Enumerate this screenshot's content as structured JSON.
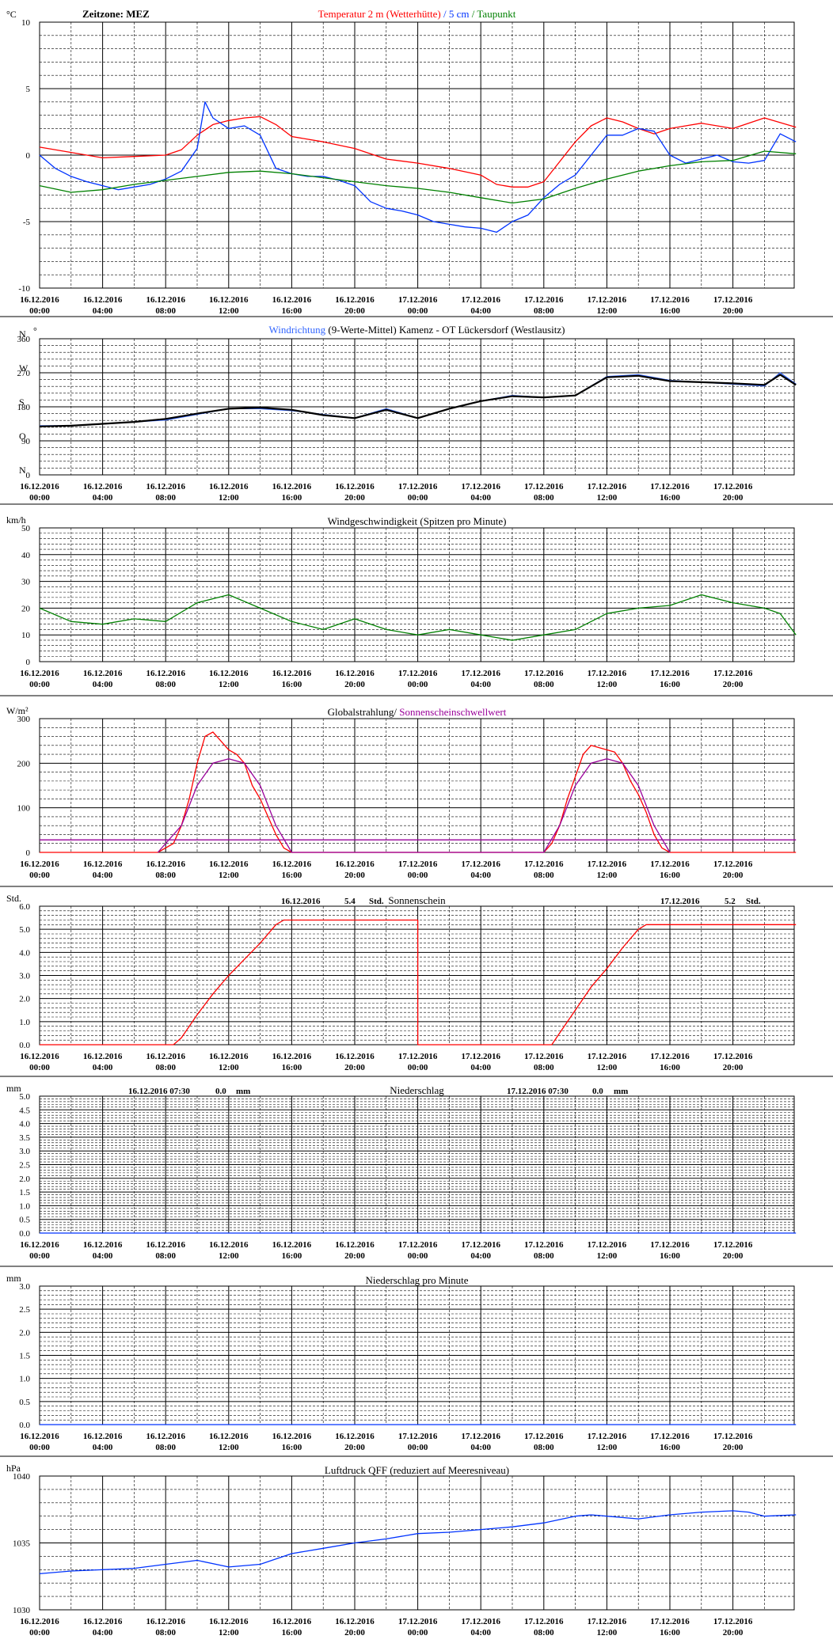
{
  "time_ticks": [
    [
      "16.12.2016",
      "00:00"
    ],
    [
      "16.12.2016",
      "04:00"
    ],
    [
      "16.12.2016",
      "08:00"
    ],
    [
      "16.12.2016",
      "12:00"
    ],
    [
      "16.12.2016",
      "16:00"
    ],
    [
      "16.12.2016",
      "20:00"
    ],
    [
      "17.12.2016",
      "00:00"
    ],
    [
      "17.12.2016",
      "04:00"
    ],
    [
      "17.12.2016",
      "08:00"
    ],
    [
      "17.12.2016",
      "12:00"
    ],
    [
      "17.12.2016",
      "16:00"
    ],
    [
      "17.12.2016",
      "20:00"
    ]
  ],
  "colors": {
    "red": "#ff0000",
    "blue": "#0033ff",
    "green": "#008000",
    "black": "#000000",
    "purple": "#990099",
    "brightblue": "#3366ff"
  },
  "chart_data": [
    {
      "id": "temperature",
      "type": "line",
      "unit": "°C",
      "timezone_label": "Zeitzone: MEZ",
      "title_parts": [
        {
          "text": "Temperatur 2 m (Wetterhütte)",
          "color": "#ff0000"
        },
        {
          "text": "  /  ",
          "color": "#0033ff"
        },
        {
          "text": "5 cm",
          "color": "#0033ff"
        },
        {
          "text": " / ",
          "color": "#008000"
        },
        {
          "text": "Taupunkt",
          "color": "#008000"
        }
      ],
      "ylim": [
        -10,
        10
      ],
      "yticks": [
        10,
        5,
        0,
        -5,
        -10
      ],
      "grid": true,
      "series": [
        {
          "name": "Temperatur 2 m (Wetterhütte)",
          "color": "#ff0000",
          "x": [
            0,
            2,
            4,
            6,
            8,
            9,
            10,
            11,
            12,
            13,
            14,
            15,
            16,
            18,
            20,
            22,
            24,
            26,
            28,
            29,
            30,
            31,
            32,
            33,
            34,
            35,
            36,
            37,
            38,
            39,
            40,
            41,
            42,
            43,
            44,
            46,
            48
          ],
          "y": [
            0.6,
            0.2,
            -0.2,
            -0.1,
            0,
            0.4,
            1.5,
            2.3,
            2.6,
            2.8,
            2.9,
            2.3,
            1.4,
            1,
            0.5,
            -0.3,
            -0.6,
            -1,
            -1.5,
            -2.2,
            -2.4,
            -2.4,
            -2,
            -0.5,
            1,
            2.2,
            2.8,
            2.5,
            2,
            1.6,
            2,
            2.2,
            2.4,
            2.2,
            2,
            2.8,
            2.1
          ]
        },
        {
          "name": "5 cm",
          "color": "#0033ff",
          "x": [
            0,
            1,
            2,
            3,
            4,
            5,
            6,
            7,
            8,
            9,
            10,
            10.5,
            11,
            12,
            13,
            14,
            15,
            16,
            17,
            18,
            19,
            20,
            21,
            22,
            23,
            24,
            25,
            26,
            27,
            28,
            29,
            30,
            31,
            32,
            33,
            34,
            35,
            36,
            37,
            38,
            39,
            40,
            41,
            42,
            43,
            44,
            45,
            46,
            47,
            48
          ],
          "y": [
            0,
            -1,
            -1.6,
            -2,
            -2.3,
            -2.6,
            -2.4,
            -2.2,
            -1.8,
            -1.2,
            0.5,
            4,
            2.8,
            2,
            2.2,
            1.5,
            -1,
            -1.4,
            -1.6,
            -1.6,
            -1.9,
            -2.3,
            -3.5,
            -4,
            -4.2,
            -4.5,
            -5,
            -5.2,
            -5.4,
            -5.5,
            -5.8,
            -5,
            -4.5,
            -3.2,
            -2.2,
            -1.5,
            0,
            1.5,
            1.5,
            2,
            1.8,
            0,
            -0.6,
            -0.3,
            0,
            -0.5,
            -0.6,
            -0.4,
            1.6,
            1
          ]
        },
        {
          "name": "Taupunkt",
          "color": "#008000",
          "x": [
            0,
            2,
            4,
            6,
            8,
            10,
            12,
            14,
            16,
            18,
            20,
            22,
            24,
            26,
            28,
            30,
            32,
            34,
            36,
            38,
            40,
            42,
            44,
            46,
            48
          ],
          "y": [
            -2.3,
            -2.8,
            -2.6,
            -2.2,
            -1.9,
            -1.6,
            -1.3,
            -1.2,
            -1.4,
            -1.7,
            -2,
            -2.3,
            -2.5,
            -2.8,
            -3.2,
            -3.6,
            -3.3,
            -2.5,
            -1.8,
            -1.2,
            -0.8,
            -0.5,
            -0.4,
            0.3,
            0.1
          ]
        }
      ]
    },
    {
      "id": "wind_direction",
      "type": "line",
      "title_parts": [
        {
          "text": "Windrichtung",
          "color": "#3366ff"
        },
        {
          "text": " (9-Werte-Mittel)",
          "color": "#000000"
        },
        {
          "text": "          Kamenz - OT Lückersdorf (Westlausitz)",
          "color": "#000000"
        }
      ],
      "ylim": [
        0,
        360
      ],
      "yticks": [
        360,
        270,
        180,
        90,
        0
      ],
      "compass": [
        {
          "label": "N",
          "value": 360
        },
        {
          "label": "W",
          "value": 270
        },
        {
          "label": "S",
          "value": 180
        },
        {
          "label": "O",
          "value": 90
        },
        {
          "label": "N",
          "value": 0
        }
      ],
      "degree_mark": "°",
      "grid": true,
      "series": [
        {
          "name": "Windrichtung",
          "color": "#3366ff",
          "x": [
            0,
            2,
            4,
            6,
            8,
            10,
            12,
            14,
            16,
            18,
            20,
            22,
            24,
            26,
            28,
            30,
            32,
            34,
            36,
            38,
            40,
            42,
            44,
            46,
            47,
            48
          ],
          "y": [
            130,
            130,
            135,
            140,
            145,
            160,
            175,
            175,
            170,
            160,
            150,
            175,
            150,
            175,
            195,
            210,
            205,
            210,
            260,
            265,
            250,
            245,
            240,
            235,
            270,
            240
          ]
        },
        {
          "name": "9-Werte-Mittel",
          "color": "#000000",
          "x": [
            0,
            2,
            4,
            6,
            8,
            10,
            12,
            14,
            16,
            18,
            20,
            22,
            24,
            26,
            28,
            30,
            32,
            34,
            36,
            38,
            40,
            42,
            44,
            46,
            47,
            48
          ],
          "y": [
            128,
            130,
            135,
            140,
            148,
            162,
            175,
            178,
            172,
            158,
            150,
            172,
            150,
            175,
            195,
            208,
            205,
            210,
            258,
            262,
            248,
            245,
            242,
            238,
            265,
            238
          ]
        }
      ]
    },
    {
      "id": "wind_speed",
      "type": "line",
      "unit": "km/h",
      "title": "Windgeschwindigkeit (Spitzen pro Minute)",
      "ylim": [
        0,
        50
      ],
      "yticks": [
        50,
        40,
        30,
        20,
        10,
        0
      ],
      "grid": true,
      "series": [
        {
          "name": "Windgeschwindigkeit",
          "color": "#008000",
          "x": [
            0,
            2,
            4,
            6,
            8,
            10,
            12,
            14,
            16,
            18,
            20,
            22,
            24,
            26,
            28,
            30,
            32,
            34,
            36,
            38,
            40,
            42,
            44,
            46,
            47,
            48
          ],
          "y": [
            20,
            15,
            14,
            16,
            15,
            22,
            25,
            20,
            15,
            12,
            16,
            12,
            10,
            12,
            10,
            8,
            10,
            12,
            18,
            20,
            21,
            25,
            22,
            20,
            18,
            10
          ]
        }
      ]
    },
    {
      "id": "radiation",
      "type": "line",
      "unit": "W/m²",
      "title_parts": [
        {
          "text": "Globalstrahlung/ ",
          "color": "#000000"
        },
        {
          "text": "Sonnenscheinschwellwert",
          "color": "#990099"
        }
      ],
      "ylim": [
        0,
        300
      ],
      "yticks": [
        300,
        200,
        100,
        0
      ],
      "grid": true,
      "series": [
        {
          "name": "Globalstrahlung",
          "color": "#ff0000",
          "x": [
            0,
            7.5,
            8.5,
            9,
            9.5,
            10,
            10.5,
            11,
            11.5,
            12,
            12.5,
            13,
            13.5,
            14,
            14.5,
            15,
            15.5,
            16,
            24,
            32,
            32.5,
            33,
            33.5,
            34,
            34.5,
            35,
            35.5,
            36,
            36.5,
            37,
            37.5,
            38,
            38.5,
            39,
            39.5,
            40,
            48
          ],
          "y": [
            0,
            0,
            20,
            60,
            120,
            200,
            260,
            270,
            250,
            230,
            220,
            200,
            150,
            120,
            80,
            40,
            10,
            0,
            0,
            0,
            20,
            60,
            120,
            170,
            220,
            240,
            235,
            230,
            225,
            200,
            160,
            130,
            90,
            40,
            10,
            0,
            0
          ]
        },
        {
          "name": "Sonnenscheinschwellwert",
          "color": "#990099",
          "x": [
            0,
            48
          ],
          "y": [
            28,
            28
          ]
        },
        {
          "name": "Sonnenscheinschwellwert",
          "color": "#990099",
          "x": [
            7.5,
            9,
            10,
            11,
            12,
            13,
            14,
            15,
            16,
            32,
            33,
            34,
            35,
            36,
            37,
            38,
            39,
            40
          ],
          "y": [
            0,
            60,
            150,
            200,
            210,
            200,
            150,
            60,
            0,
            0,
            60,
            150,
            200,
            210,
            200,
            150,
            60,
            0
          ]
        }
      ]
    },
    {
      "id": "sunshine",
      "type": "line",
      "unit": "Std.",
      "title": "Sonnenschein",
      "annotations": [
        {
          "date": "16.12.2016",
          "value": "5.4",
          "unit": "Std."
        },
        {
          "date": "17.12.2016",
          "value": "5.2",
          "unit": "Std."
        }
      ],
      "ylim": [
        0,
        6
      ],
      "yticks": [
        6.0,
        5.0,
        4.0,
        3.0,
        2.0,
        1.0,
        0.0
      ],
      "grid": true,
      "series": [
        {
          "name": "Sonnenschein",
          "color": "#ff0000",
          "x": [
            0,
            8.5,
            9,
            10,
            11,
            12,
            13,
            14,
            15,
            15.5,
            24,
            24,
            32.5,
            33,
            34,
            35,
            36,
            37,
            38,
            38.5,
            48
          ],
          "y": [
            0,
            0,
            0.3,
            1.3,
            2.2,
            3.0,
            3.7,
            4.4,
            5.2,
            5.4,
            5.4,
            0,
            0,
            0.5,
            1.5,
            2.5,
            3.3,
            4.2,
            5.0,
            5.2,
            5.2
          ]
        }
      ]
    },
    {
      "id": "precipitation",
      "type": "line",
      "unit": "mm",
      "title": "Niederschlag",
      "annotations": [
        {
          "date": "16.12.2016 07:30",
          "value": "0.0",
          "unit": "mm"
        },
        {
          "date": "17.12.2016 07:30",
          "value": "0.0",
          "unit": "mm"
        }
      ],
      "ylim": [
        0,
        5
      ],
      "yticks": [
        5.0,
        4.5,
        4.0,
        3.5,
        3.0,
        2.5,
        2.0,
        1.5,
        1.0,
        0.5,
        0.0
      ],
      "grid": true,
      "series": [
        {
          "name": "Niederschlag",
          "color": "#0033ff",
          "x": [
            0,
            48
          ],
          "y": [
            0,
            0
          ]
        }
      ]
    },
    {
      "id": "precipitation_minute",
      "type": "line",
      "unit": "mm",
      "title": "Niederschlag pro Minute",
      "ylim": [
        0,
        3
      ],
      "yticks": [
        3.0,
        2.5,
        2.0,
        1.5,
        1.0,
        0.5,
        0.0
      ],
      "grid": true,
      "series": [
        {
          "name": "Niederschlag pro Minute",
          "color": "#0033ff",
          "x": [
            0,
            48
          ],
          "y": [
            0,
            0
          ]
        }
      ]
    },
    {
      "id": "pressure",
      "type": "line",
      "unit": "hPa",
      "title": "Luftdruck QFF (reduziert auf Meeresniveau)",
      "ylim": [
        1030,
        1040
      ],
      "yticks": [
        1040,
        1035,
        1030
      ],
      "grid": true,
      "series": [
        {
          "name": "Luftdruck QFF",
          "color": "#0033ff",
          "x": [
            0,
            2,
            4,
            6,
            8,
            10,
            12,
            14,
            16,
            18,
            20,
            22,
            24,
            26,
            28,
            30,
            32,
            34,
            35,
            36,
            38,
            40,
            42,
            44,
            45,
            46,
            48
          ],
          "y": [
            1032.7,
            1032.9,
            1033,
            1033.1,
            1033.4,
            1033.7,
            1033.2,
            1033.4,
            1034.2,
            1034.6,
            1035,
            1035.3,
            1035.7,
            1035.8,
            1036,
            1036.2,
            1036.5,
            1037,
            1037.1,
            1037,
            1036.8,
            1037.1,
            1037.3,
            1037.4,
            1037.3,
            1037,
            1037.1
          ]
        }
      ]
    }
  ]
}
